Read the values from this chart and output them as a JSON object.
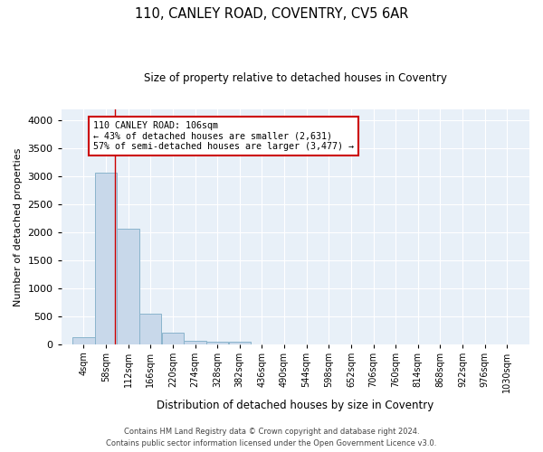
{
  "title": "110, CANLEY ROAD, COVENTRY, CV5 6AR",
  "subtitle": "Size of property relative to detached houses in Coventry",
  "xlabel": "Distribution of detached houses by size in Coventry",
  "ylabel": "Number of detached properties",
  "bar_color": "#c8d8ea",
  "bar_edge_color": "#8ab4cc",
  "bg_color": "#e8f0f8",
  "grid_color": "#ffffff",
  "fig_bg_color": "#ffffff",
  "vline_color": "#cc0000",
  "vline_x": 106,
  "annotation_box_text": "110 CANLEY ROAD: 106sqm\n← 43% of detached houses are smaller (2,631)\n57% of semi-detached houses are larger (3,477) →",
  "annotation_box_color": "#cc0000",
  "bin_edges": [
    4,
    58,
    112,
    166,
    220,
    274,
    328,
    382,
    436,
    490,
    544,
    598,
    652,
    706,
    760,
    814,
    868,
    922,
    976,
    1030,
    1084
  ],
  "bar_heights": [
    130,
    3060,
    2060,
    560,
    220,
    80,
    50,
    50,
    0,
    0,
    0,
    0,
    0,
    0,
    0,
    0,
    0,
    0,
    0,
    0
  ],
  "ylim": [
    0,
    4200
  ],
  "yticks": [
    0,
    500,
    1000,
    1500,
    2000,
    2500,
    3000,
    3500,
    4000
  ],
  "footer_line1": "Contains HM Land Registry data © Crown copyright and database right 2024.",
  "footer_line2": "Contains public sector information licensed under the Open Government Licence v3.0."
}
